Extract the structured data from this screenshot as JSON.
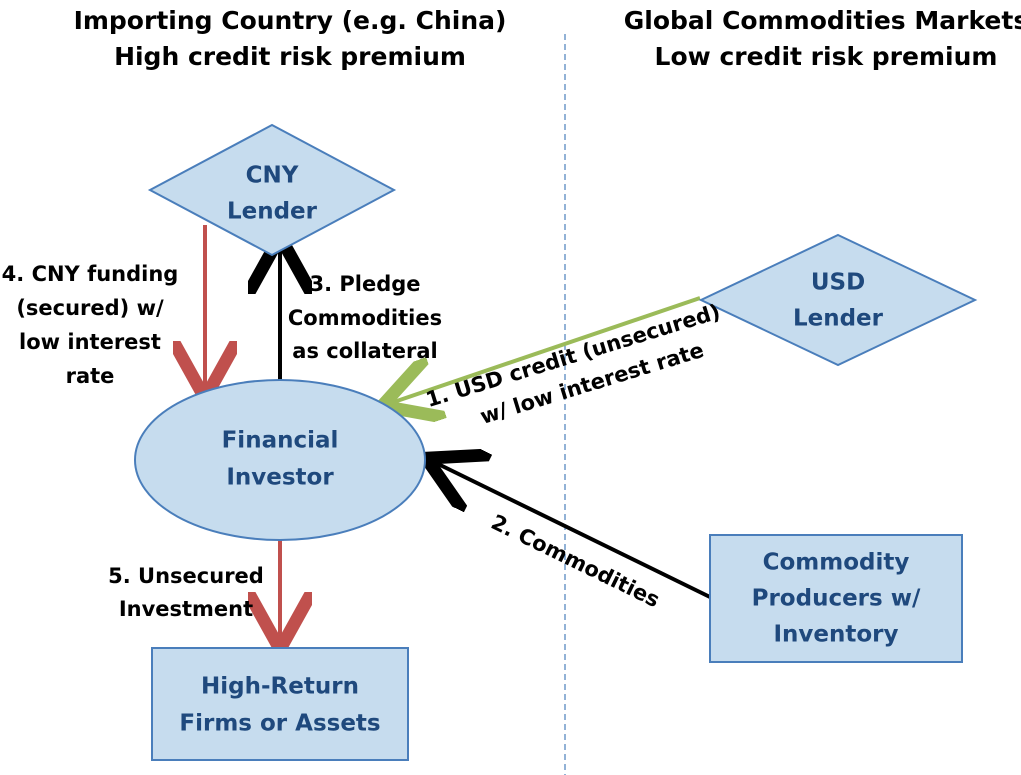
{
  "header": {
    "left": {
      "lines": [
        "Importing Country (e.g. China)",
        "High credit risk premium"
      ]
    },
    "right": {
      "lines": [
        "Global Commodities Markets",
        "Low credit risk premium"
      ]
    }
  },
  "nodes": [
    {
      "label": [
        "CNY",
        "Lender"
      ]
    },
    {
      "label": [
        "USD",
        "Lender"
      ]
    },
    {
      "label": [
        "Financial",
        "Investor"
      ]
    },
    {
      "label": [
        "Commodity",
        "Producers w/",
        "Inventory"
      ]
    },
    {
      "label": [
        "High-Return",
        "Firms or Assets"
      ]
    }
  ],
  "edges": [
    {
      "label": [
        "1. USD credit (unsecured)",
        "w/ low interest rate"
      ]
    },
    {
      "label": [
        "2. Commodities"
      ]
    },
    {
      "label": [
        "3. Pledge",
        "Commodities",
        "as collateral"
      ]
    },
    {
      "label": [
        "4. CNY funding",
        "(secured) w/",
        "low interest",
        "rate"
      ]
    },
    {
      "label": [
        "5. Unsecured",
        "Investment"
      ]
    }
  ]
}
